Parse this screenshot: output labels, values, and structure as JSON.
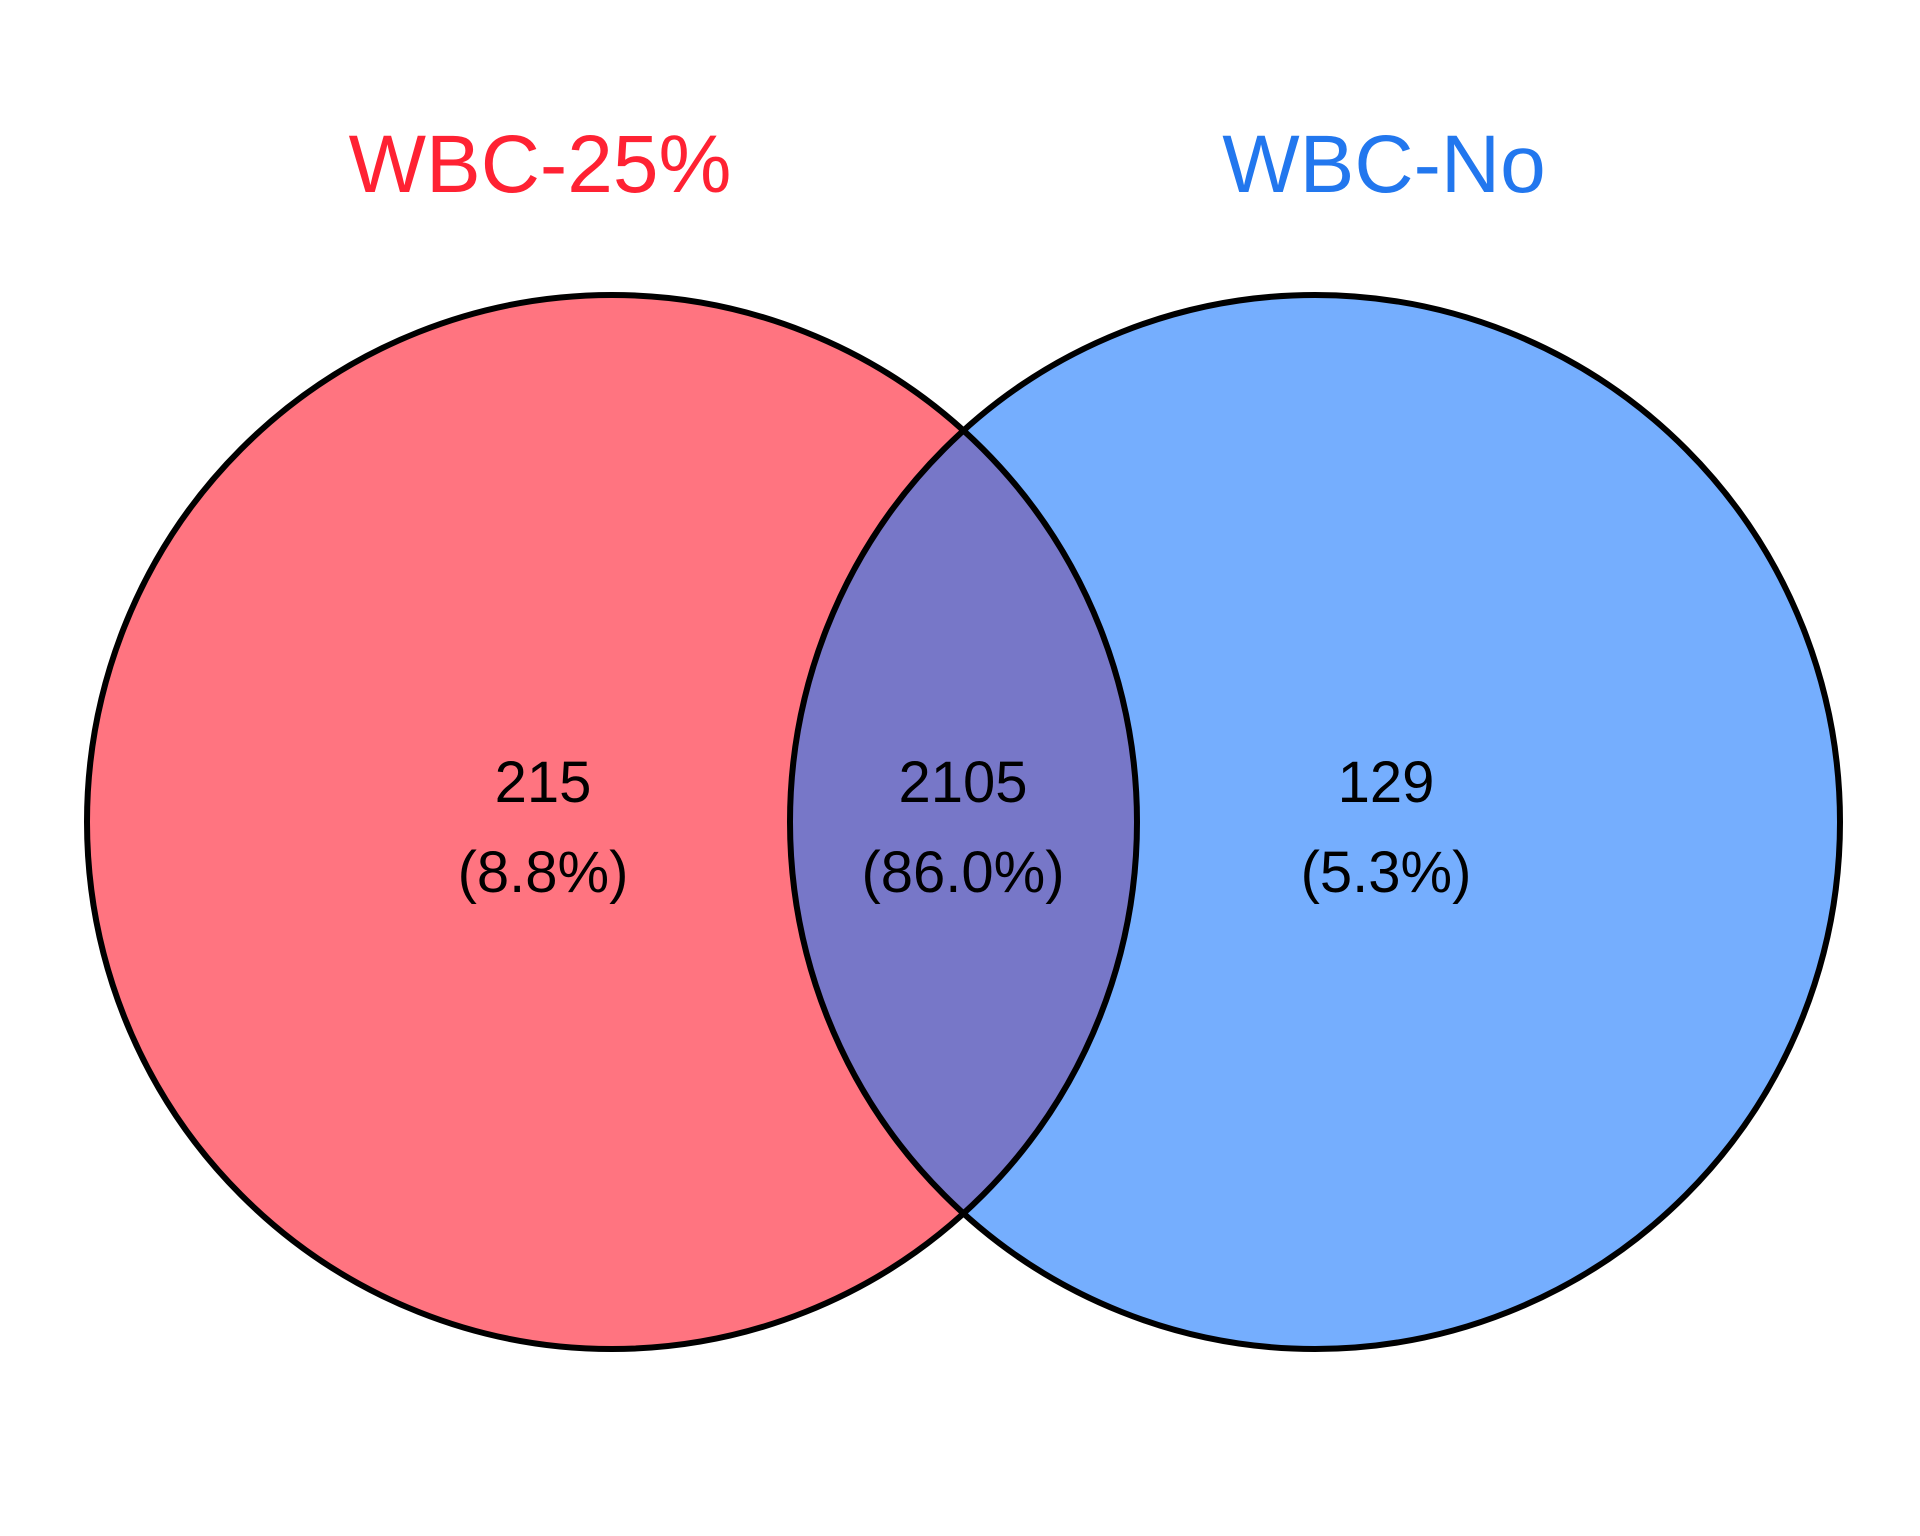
{
  "sets": [
    {
      "name": "WBC-25%",
      "color": "#ff2233",
      "fill": "#ff7480"
    },
    {
      "name": "WBC-No",
      "color": "#2277ee",
      "fill": "#75aefe"
    }
  ],
  "intersection_fill": "#7777c8",
  "outline_color": "#000000",
  "regions": {
    "left_only": {
      "count": "215",
      "percent": "(8.8%)"
    },
    "both": {
      "count": "2105",
      "percent": "(86.0%)"
    },
    "right_only": {
      "count": "129",
      "percent": "(5.3%)"
    }
  }
}
